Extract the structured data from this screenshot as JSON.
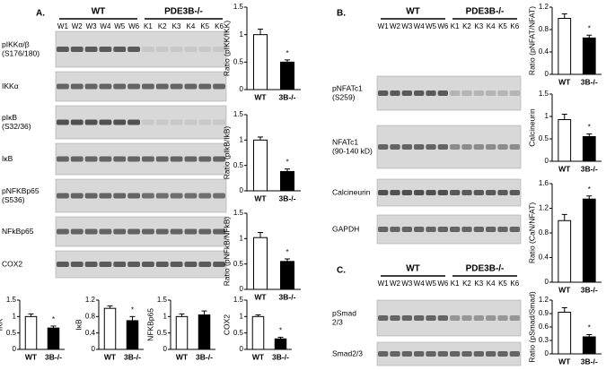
{
  "blots": [
    {
      "panel": "A.",
      "groups": [
        "WT",
        "PDE3B-/-"
      ],
      "lanes": [
        "W1",
        "W2",
        "W3",
        "W4",
        "W5",
        "W6",
        "K1",
        "K2",
        "K3",
        "K4",
        "K5",
        "K6"
      ],
      "rows": [
        {
          "label": [
            "pIKKα/β",
            "(S176/180)"
          ]
        },
        {
          "label": [
            "IKKα"
          ]
        },
        {
          "label": [
            "pIκB",
            "(S32/36)"
          ]
        },
        {
          "label": [
            "IκB"
          ]
        },
        {
          "label": [
            "pNFKBp65",
            "(S536)"
          ]
        },
        {
          "label": [
            "NFkBp65"
          ]
        },
        {
          "label": [
            "COX2"
          ]
        }
      ]
    },
    {
      "panel": "B.",
      "groups": [
        "WT",
        "PDE3B-/-"
      ],
      "lanes": [
        "W1",
        "W2",
        "W3",
        "W4",
        "W5",
        "W6",
        "K1",
        "K2",
        "K3",
        "K4",
        "K5",
        "K6"
      ],
      "rows": [
        {
          "label": [
            "pNFATc1",
            "(S259)"
          ]
        },
        {
          "label": [
            "NFATc1",
            "(90-140 kD)"
          ]
        },
        {
          "label": [
            "Calcineurin"
          ]
        },
        {
          "label": [
            "GAPDH"
          ]
        }
      ]
    },
    {
      "panel": "C.",
      "groups": [
        "WT",
        "PDE3B-/-"
      ],
      "lanes": [
        "W1",
        "W2",
        "W3",
        "W4",
        "W5",
        "W6",
        "K1",
        "K2",
        "K3",
        "K4",
        "K5",
        "K6"
      ],
      "rows": [
        {
          "label": [
            "pSmad",
            "2/3"
          ]
        },
        {
          "label": [
            "Smad2/3"
          ]
        }
      ]
    }
  ],
  "chart_data": [
    {
      "type": "bar",
      "y_label": "Ratio (pIKK/IKK)",
      "categories": [
        "WT",
        "3B-/-"
      ],
      "values": [
        1.0,
        0.5
      ],
      "errors": [
        0.1,
        0.04
      ],
      "colors": [
        "#ffffff",
        "#000000"
      ],
      "ylim": [
        0,
        1.5
      ],
      "yticks": [
        0,
        0.5,
        1,
        1.5
      ],
      "annotation": "*"
    },
    {
      "type": "bar",
      "y_label": "Ratio (pIkB/IkB)",
      "categories": [
        "WT",
        "3B-/-"
      ],
      "values": [
        1.0,
        0.38
      ],
      "errors": [
        0.06,
        0.05
      ],
      "colors": [
        "#ffffff",
        "#000000"
      ],
      "ylim": [
        0,
        1.5
      ],
      "yticks": [
        0,
        0.5,
        1,
        1.5
      ],
      "annotation": "*"
    },
    {
      "type": "bar",
      "y_label": "Ratio (pNFkB/NFkB)",
      "categories": [
        "WT",
        "3B-/-"
      ],
      "values": [
        1.02,
        0.55
      ],
      "errors": [
        0.1,
        0.05
      ],
      "colors": [
        "#ffffff",
        "#000000"
      ],
      "ylim": [
        0,
        1.5
      ],
      "yticks": [
        0,
        0.5,
        1,
        1.5
      ],
      "annotation": "*"
    },
    {
      "type": "bar",
      "y_label": "IKK",
      "categories": [
        "WT",
        "3B-/-"
      ],
      "values": [
        1.0,
        0.65
      ],
      "errors": [
        0.08,
        0.06
      ],
      "colors": [
        "#ffffff",
        "#000000"
      ],
      "ylim": [
        0,
        1.5
      ],
      "yticks": [
        0,
        0.5,
        1,
        1.5
      ],
      "annotation": "*"
    },
    {
      "type": "bar",
      "y_label": "IκB",
      "categories": [
        "WT",
        "3B-/-"
      ],
      "values": [
        1.0,
        0.7
      ],
      "errors": [
        0.06,
        0.1
      ],
      "colors": [
        "#ffffff",
        "#000000"
      ],
      "ylim": [
        0,
        1.2
      ],
      "yticks": [
        0,
        0.4,
        0.8,
        1.2
      ],
      "annotation": "*"
    },
    {
      "type": "bar",
      "y_label": "NFKBp65",
      "categories": [
        "WT",
        "3B-/-"
      ],
      "values": [
        1.0,
        1.05
      ],
      "errors": [
        0.08,
        0.12
      ],
      "colors": [
        "#ffffff",
        "#000000"
      ],
      "ylim": [
        0,
        1.5
      ],
      "yticks": [
        0,
        0.5,
        1,
        1.5
      ]
    },
    {
      "type": "bar",
      "y_label": "COX2",
      "categories": [
        "WT",
        "3B-/-"
      ],
      "values": [
        1.0,
        0.32
      ],
      "errors": [
        0.05,
        0.05
      ],
      "colors": [
        "#ffffff",
        "#000000"
      ],
      "ylim": [
        0,
        1.5
      ],
      "yticks": [
        0,
        0.5,
        1,
        1.5
      ],
      "annotation": "*"
    },
    {
      "type": "bar",
      "y_label": "Ratio (pNFAT/NFAT)",
      "categories": [
        "WT",
        "3B-/-"
      ],
      "values": [
        1.0,
        0.65
      ],
      "errors": [
        0.08,
        0.05
      ],
      "colors": [
        "#ffffff",
        "#000000"
      ],
      "ylim": [
        0,
        1.2
      ],
      "yticks": [
        0,
        0.4,
        0.8,
        1.2
      ],
      "annotation": "*"
    },
    {
      "type": "bar",
      "y_label": "Calcineurin",
      "categories": [
        "WT",
        "3B-/-"
      ],
      "values": [
        0.93,
        0.55
      ],
      "errors": [
        0.12,
        0.06
      ],
      "colors": [
        "#ffffff",
        "#000000"
      ],
      "ylim": [
        0,
        1.5
      ],
      "yticks": [
        0,
        0.5,
        1,
        1.5
      ],
      "annotation": "*"
    },
    {
      "type": "bar",
      "y_label": "Ratio (CaN/NFAT)",
      "categories": [
        "WT",
        "3B-/-"
      ],
      "values": [
        1.0,
        1.35
      ],
      "errors": [
        0.1,
        0.05
      ],
      "colors": [
        "#ffffff",
        "#000000"
      ],
      "ylim": [
        0,
        1.6
      ],
      "yticks": [
        0,
        0.4,
        0.8,
        1.2,
        1.6
      ],
      "annotation": "*"
    },
    {
      "type": "bar",
      "y_label": "Ratio (pSmad/Smad)",
      "categories": [
        "WT",
        "3B-/-"
      ],
      "values": [
        0.93,
        0.38
      ],
      "errors": [
        0.1,
        0.05
      ],
      "colors": [
        "#ffffff",
        "#000000"
      ],
      "ylim": [
        0,
        1.2
      ],
      "yticks": [
        0,
        0.3,
        0.6,
        0.9,
        1.2
      ],
      "annotation": "*"
    }
  ]
}
